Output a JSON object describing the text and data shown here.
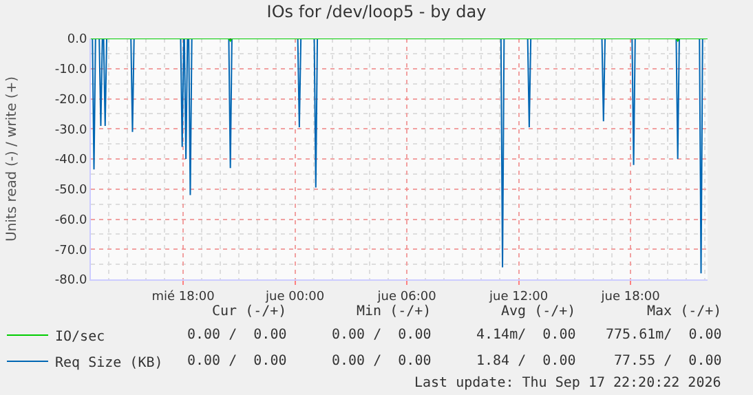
{
  "chart_data": {
    "type": "line",
    "title": "IOs for /dev/loop5 - by day",
    "ylabel": "Units read (-) / write (+)",
    "xlim": [
      "2026-09-16T13:03",
      "2026-09-17T22:08"
    ],
    "xticks": [
      {
        "value": "2026-09-16T18:00",
        "label": "mié 18:00"
      },
      {
        "value": "2026-09-17T00:00",
        "label": "jue 00:00"
      },
      {
        "value": "2026-09-17T06:00",
        "label": "jue 06:00"
      },
      {
        "value": "2026-09-17T12:00",
        "label": "jue 12:00"
      },
      {
        "value": "2026-09-17T18:00",
        "label": "jue 18:00"
      }
    ],
    "ylim": [
      -80,
      0
    ],
    "yticks": [
      {
        "value": -80,
        "label": "-80.0"
      },
      {
        "value": -70,
        "label": "-70.0"
      },
      {
        "value": -60,
        "label": "-60.0"
      },
      {
        "value": -50,
        "label": "-50.0"
      },
      {
        "value": -40,
        "label": "-40.0"
      },
      {
        "value": -30,
        "label": "-30.0"
      },
      {
        "value": -20,
        "label": "-20.0"
      },
      {
        "value": -10,
        "label": "-10.0"
      },
      {
        "value": 0,
        "label": "0.0"
      }
    ],
    "grid": true,
    "legend": "bottom left",
    "marker": "none",
    "line_style": "solid",
    "series": [
      {
        "name": "IO/sec",
        "color": "#00cc00",
        "x": [
          "2026-09-16T13:03",
          "2026-09-16T20:27",
          "2026-09-16T20:32",
          "2026-09-16T20:37",
          "2026-09-17T20:27",
          "2026-09-17T20:32",
          "2026-09-17T20:37",
          "2026-09-17T22:08"
        ],
        "values": [
          0,
          0,
          -0.8,
          0,
          0,
          -0.8,
          0,
          0
        ]
      },
      {
        "name": "Req Size (KB)",
        "color": "#0066b3",
        "x": [
          "2026-09-16T13:03",
          "2026-09-16T13:08",
          "2026-09-16T13:13",
          "2026-09-16T13:18",
          "2026-09-16T13:30",
          "2026-09-16T13:35",
          "2026-09-16T13:40",
          "2026-09-16T13:44",
          "2026-09-16T13:49",
          "2026-09-16T13:54",
          "2026-09-16T15:12",
          "2026-09-16T15:17",
          "2026-09-16T15:22",
          "2026-09-16T17:52",
          "2026-09-16T17:57",
          "2026-09-16T18:02",
          "2026-09-16T18:04",
          "2026-09-16T18:09",
          "2026-09-16T18:14",
          "2026-09-16T18:18",
          "2026-09-16T18:23",
          "2026-09-16T18:28",
          "2026-09-16T20:27",
          "2026-09-16T20:32",
          "2026-09-16T20:37",
          "2026-09-17T00:09",
          "2026-09-17T00:14",
          "2026-09-17T00:19",
          "2026-09-17T01:02",
          "2026-09-17T01:07",
          "2026-09-17T01:12",
          "2026-09-17T11:03",
          "2026-09-17T11:08",
          "2026-09-17T11:13",
          "2026-09-17T12:29",
          "2026-09-17T12:34",
          "2026-09-17T12:39",
          "2026-09-17T16:28",
          "2026-09-17T16:33",
          "2026-09-17T16:38",
          "2026-09-17T18:05",
          "2026-09-17T18:10",
          "2026-09-17T18:15",
          "2026-09-17T20:27",
          "2026-09-17T20:32",
          "2026-09-17T20:37",
          "2026-09-17T21:42",
          "2026-09-17T21:47",
          "2026-09-17T21:52",
          "2026-09-17T22:08"
        ],
        "values": [
          0,
          0,
          -43.5,
          0,
          0,
          -29,
          0,
          0,
          -29,
          0,
          0,
          -31,
          0,
          0,
          -36,
          0,
          0,
          -40,
          0,
          0,
          -52,
          0,
          0,
          -43,
          0,
          0,
          -29.5,
          0,
          0,
          -49.5,
          0,
          0,
          -76,
          0,
          0,
          -29.5,
          0,
          0,
          -27.5,
          0,
          0,
          -42,
          0,
          0,
          -40,
          0,
          0,
          -78,
          0,
          0
        ]
      }
    ],
    "annotations": [
      "Cur (-/+)",
      "Min (-/+)",
      "Avg (-/+)",
      "Max (-/+)",
      "0.00 /  0.00",
      "0.00 /  0.00",
      "4.14m/  0.00",
      "775.61m/  0.00",
      "0.00 /  0.00",
      "0.00 /  0.00",
      "1.84 /  0.00",
      "77.55 /  0.00",
      "Last update: Thu Sep 17 22:20:22 2026"
    ]
  }
}
